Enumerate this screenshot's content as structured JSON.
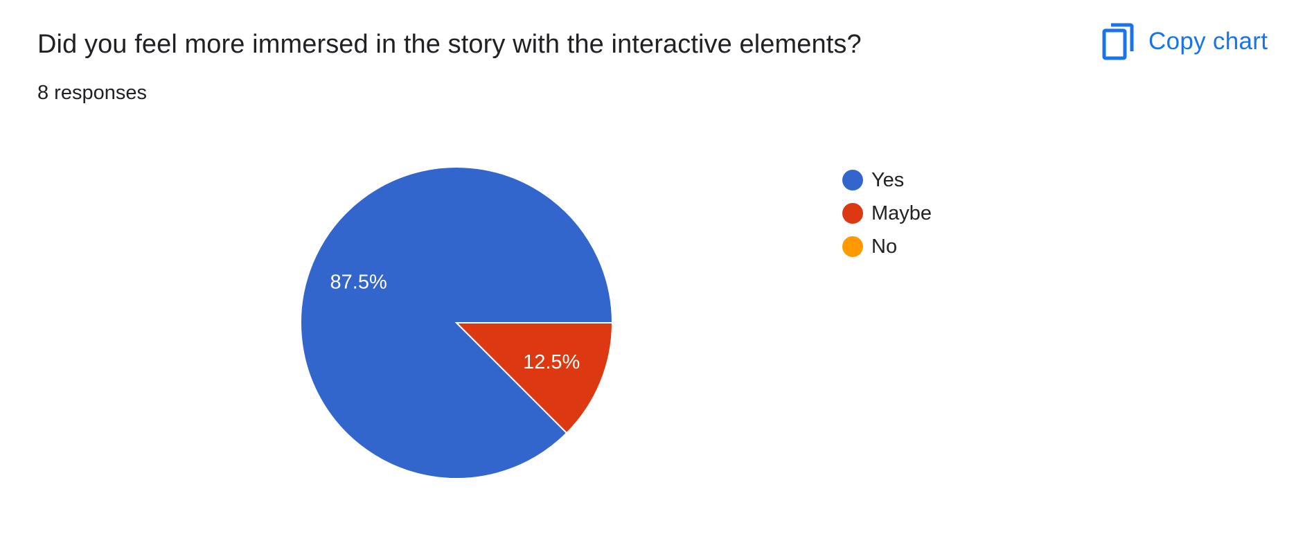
{
  "question": {
    "title": "Did you feel more immersed in the story with the interactive elements?",
    "response_count": "8 responses"
  },
  "toolbar": {
    "copy_label": "Copy chart",
    "copy_icon": "copy-icon",
    "accent_color": "#1a73e8"
  },
  "chart_data": {
    "type": "pie",
    "slices": [
      {
        "label": "Yes",
        "value": 7,
        "percent_label": "87.5%",
        "color": "#3366cc"
      },
      {
        "label": "Maybe",
        "value": 1,
        "percent_label": "12.5%",
        "color": "#dc3912"
      },
      {
        "label": "No",
        "value": 0,
        "percent_label": "",
        "color": "#ff9900"
      }
    ],
    "legend_position": "right"
  }
}
